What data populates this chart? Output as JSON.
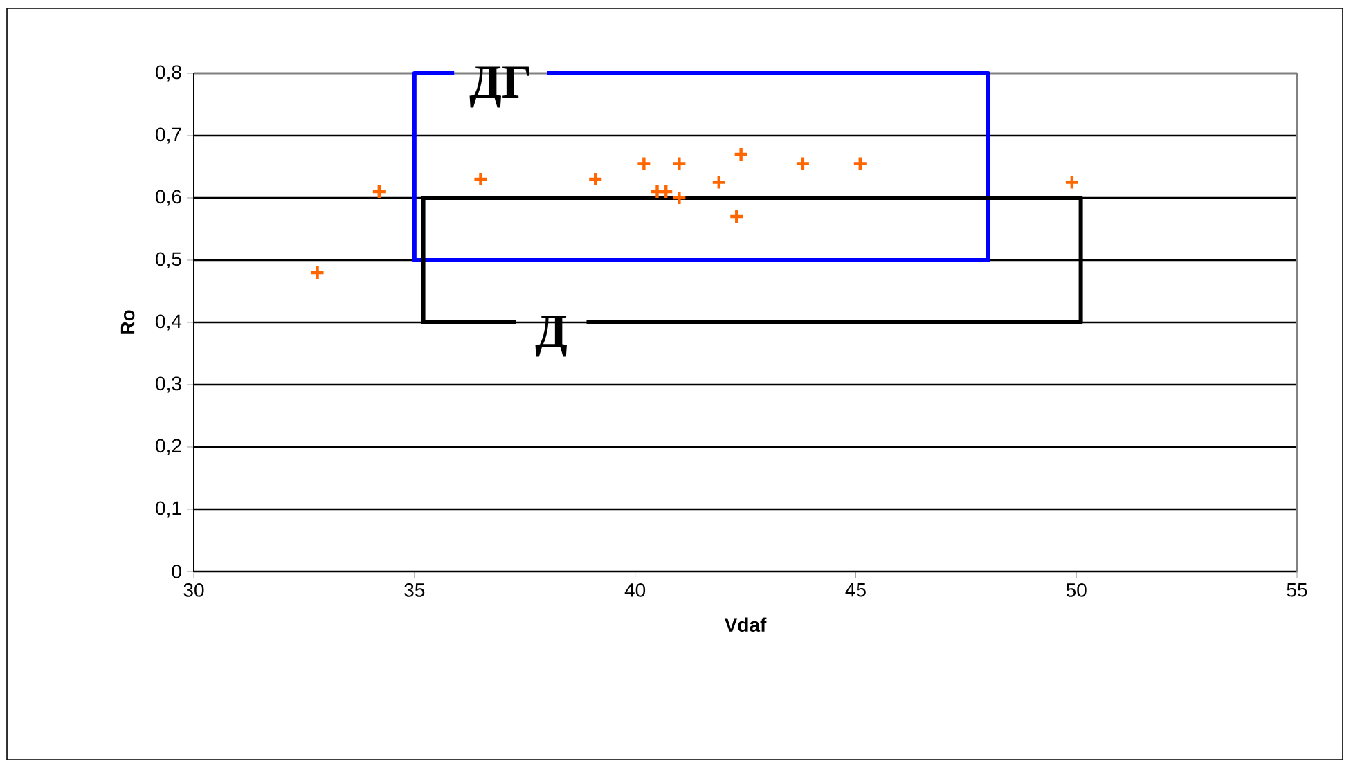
{
  "chart_data": {
    "type": "scatter",
    "xlabel": "Vdaf",
    "ylabel": "Ro",
    "xlim": [
      30,
      55
    ],
    "xticks": [
      30,
      35,
      40,
      45,
      50,
      55
    ],
    "ylim": [
      0,
      0.8
    ],
    "yticks": [
      0,
      {
        "value": 0.1,
        "label": "0,1"
      },
      {
        "value": 0.2,
        "label": "0,2"
      },
      {
        "value": 0.3,
        "label": "0,3"
      },
      {
        "value": 0.4,
        "label": "0,4"
      },
      {
        "value": 0.5,
        "label": "0,5"
      },
      {
        "value": 0.6,
        "label": "0,6"
      },
      {
        "value": 0.7,
        "label": "0,7"
      },
      {
        "value": 0.8,
        "label": "0,8"
      }
    ],
    "grid": "y",
    "series": [
      {
        "type": "scatter",
        "marker": "cross",
        "color": "#ff6600",
        "x": [
          32.8,
          34.2,
          36.5,
          39.1,
          40.2,
          41.0,
          40.5,
          40.7,
          41.0,
          41.9,
          42.4,
          42.3,
          43.8,
          45.1,
          49.9
        ],
        "values": [
          0.48,
          0.61,
          0.63,
          0.63,
          0.655,
          0.655,
          0.61,
          0.61,
          0.6,
          0.625,
          0.67,
          0.57,
          0.655,
          0.655,
          0.625
        ]
      },
      {
        "type": "line",
        "marker": "none",
        "name": "ДГ",
        "color": "#0000ff",
        "x": [
          38.0,
          48,
          48,
          35,
          35,
          35.9
        ],
        "values": [
          0.8,
          0.8,
          0.5,
          0.5,
          0.8,
          0.8
        ]
      },
      {
        "type": "line",
        "marker": "none",
        "name": "Д",
        "color": "#000000",
        "x": [
          38.9,
          50.1,
          50.1,
          35.2,
          35.2,
          37.3
        ],
        "values": [
          0.4,
          0.4,
          0.6,
          0.6,
          0.4,
          0.4
        ]
      }
    ]
  }
}
